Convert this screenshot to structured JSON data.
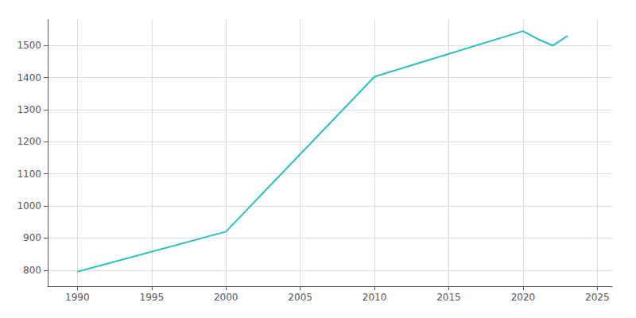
{
  "chart_data": {
    "type": "line",
    "x": [
      1990,
      2000,
      2010,
      2020,
      2021,
      2022,
      2023
    ],
    "values": [
      795,
      920,
      1403,
      1545,
      1520,
      1500,
      1530
    ],
    "color": "#2BBFBF",
    "xlim": [
      1988,
      2026
    ],
    "ylim": [
      750,
      1580
    ],
    "xticks": [
      1990,
      1995,
      2000,
      2005,
      2010,
      2015,
      2020,
      2025
    ],
    "yticks": [
      800,
      900,
      1000,
      1100,
      1200,
      1300,
      1400,
      1500
    ],
    "grid": true
  }
}
